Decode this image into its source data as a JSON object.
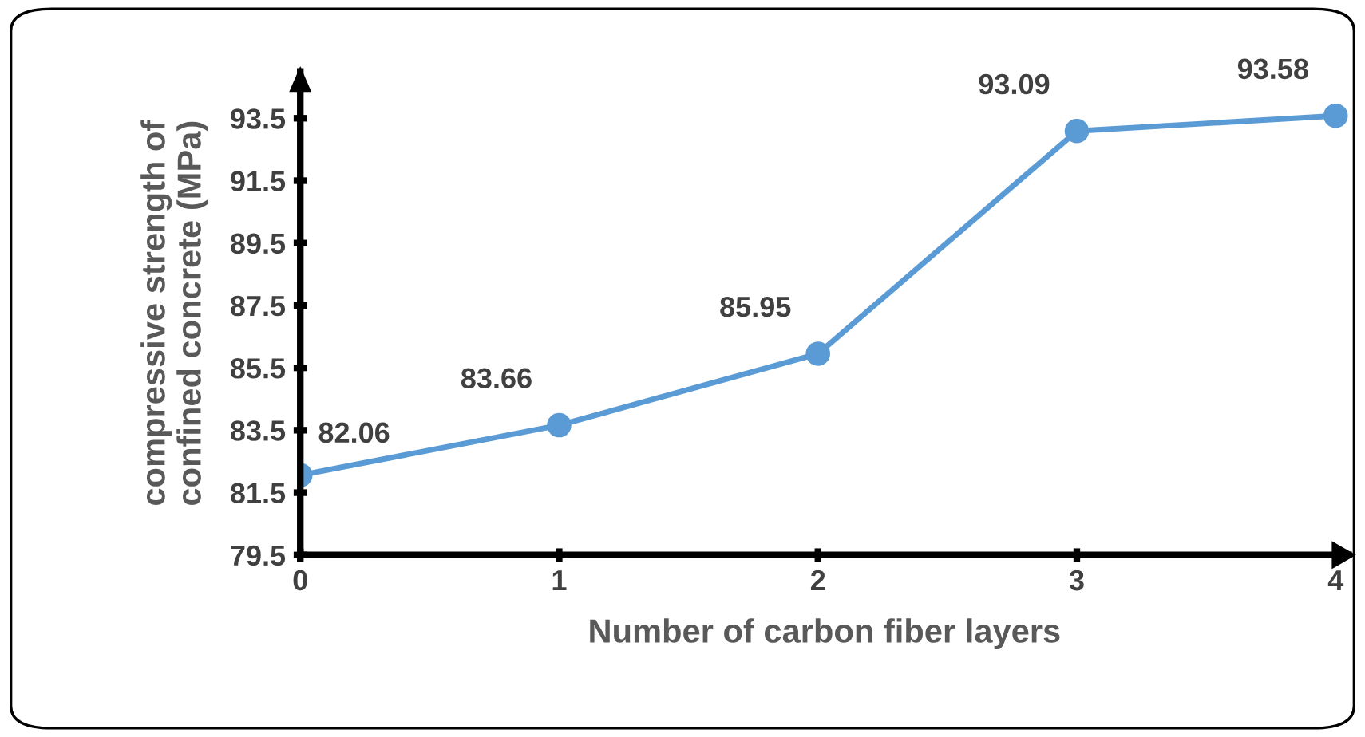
{
  "chart_data": {
    "type": "line",
    "xlabel": "Number of carbon fiber layers",
    "ylabel": "compressive strength of\nconfined concrete (MPa)",
    "x": [
      0,
      1,
      2,
      3,
      4
    ],
    "series": [
      {
        "color": "#5b9bd5",
        "values": [
          82.06,
          83.66,
          85.95,
          93.09,
          93.58
        ]
      }
    ],
    "xlim": [
      0,
      4.05
    ],
    "xticks": [
      0,
      1,
      2,
      3,
      4
    ],
    "ylim": [
      79.5,
      95
    ],
    "yticks": [
      79.5,
      81.5,
      83.5,
      85.5,
      87.5,
      89.5,
      91.5,
      93.5
    ],
    "data_labels": true,
    "grid": false,
    "marker": "circle",
    "line_style": "solid"
  }
}
